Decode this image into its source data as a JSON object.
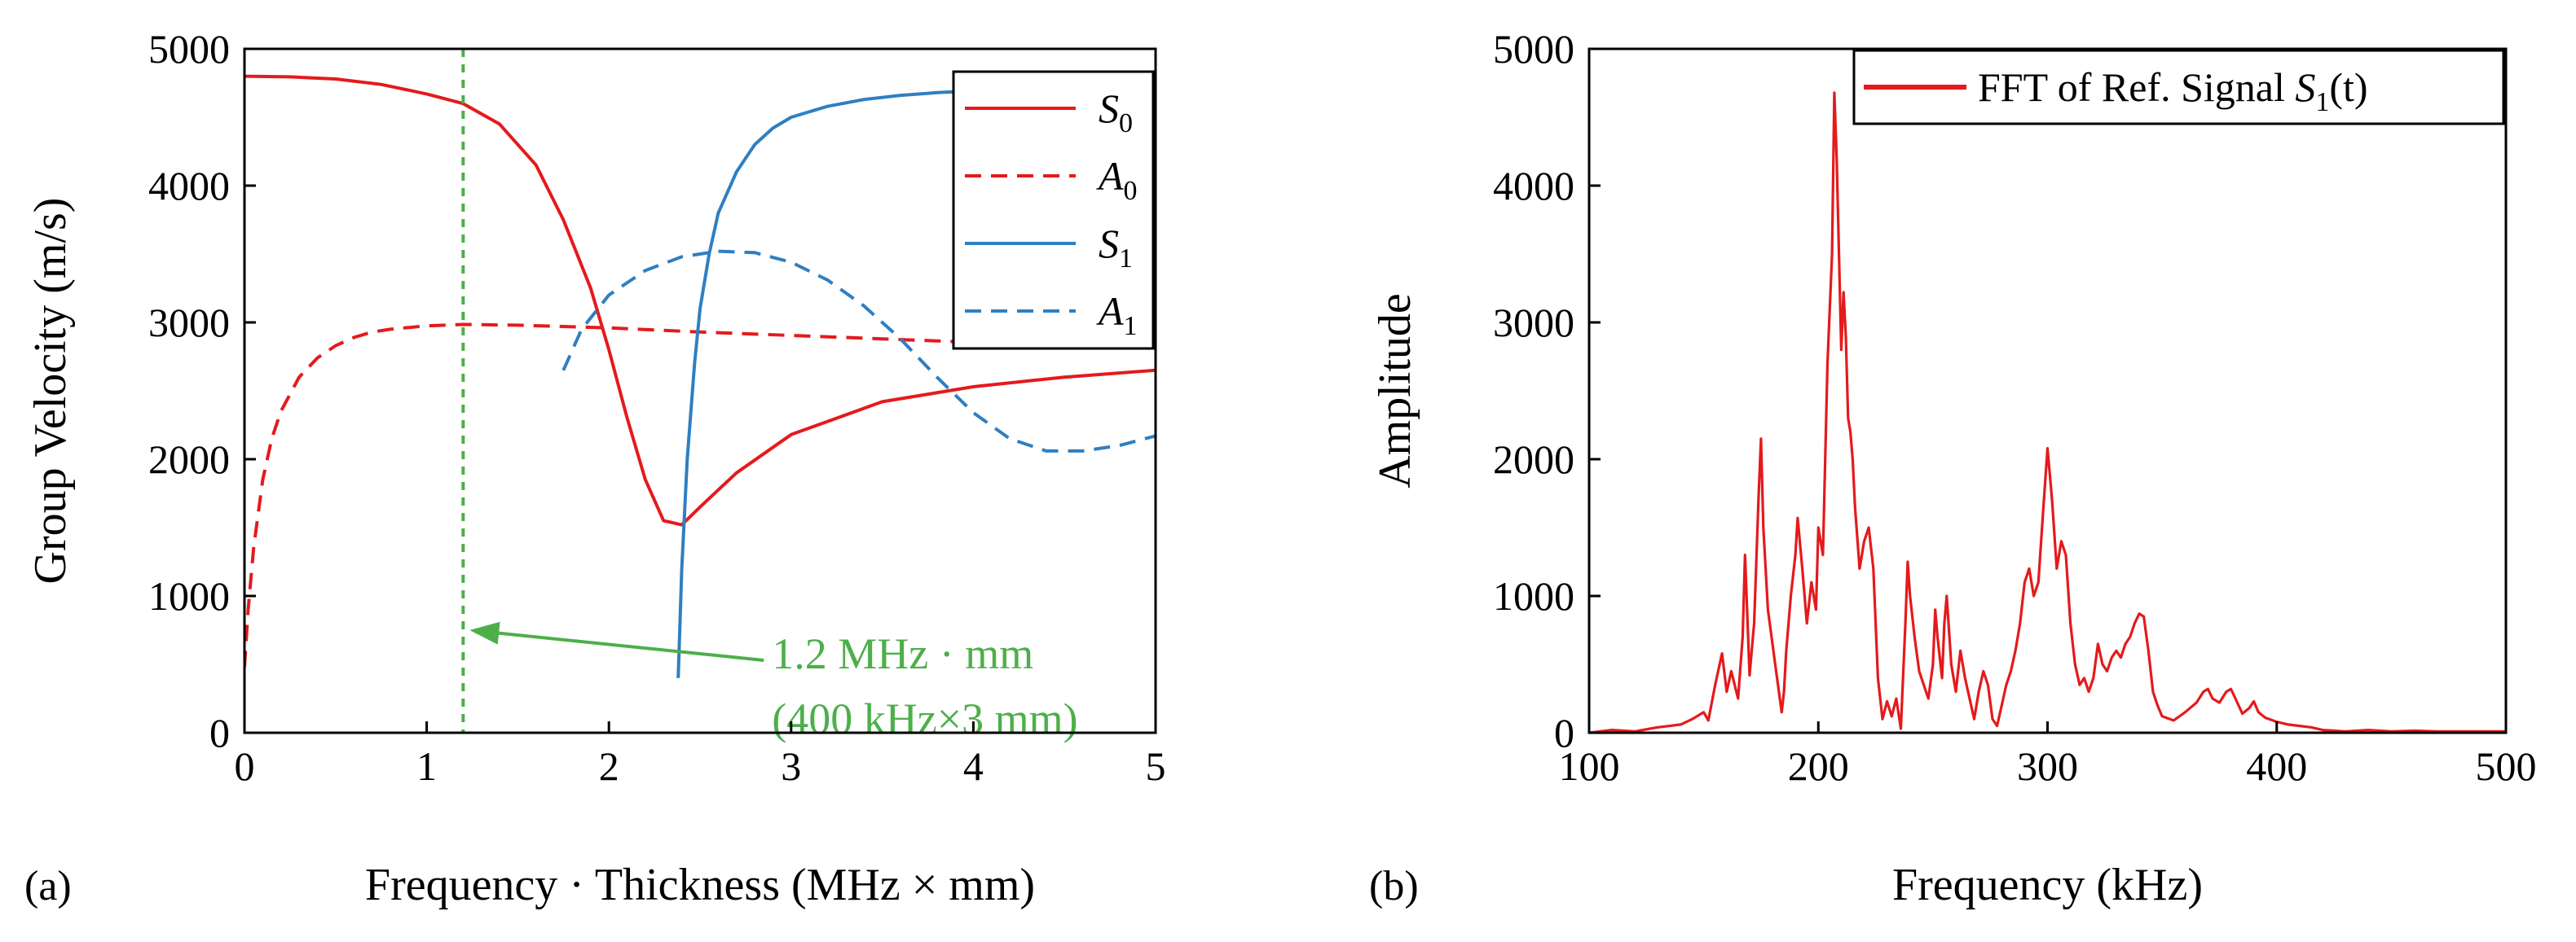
{
  "colors": {
    "red": "#e41a1c",
    "blue": "#2f7fc1",
    "green": "#4daf4a",
    "black": "#000000"
  },
  "chart_data": [
    {
      "panel": "(a)",
      "type": "line",
      "title": "",
      "xlabel": "Frequency · Thickness (MHz × mm)",
      "ylabel": "Group Velocity (m/s)",
      "xlim": [
        0,
        5
      ],
      "ylim": [
        0,
        5000
      ],
      "xticks": [
        0,
        1,
        2,
        3,
        4,
        5
      ],
      "yticks": [
        0,
        1000,
        2000,
        3000,
        4000,
        5000
      ],
      "xtick_labels": [
        "0",
        "1",
        "2",
        "3",
        "4",
        "5"
      ],
      "ytick_labels": [
        "0",
        "1000",
        "2000",
        "3000",
        "4000",
        "5000"
      ],
      "grid": false,
      "legend_position": "top-right",
      "series": [
        {
          "name": "S0",
          "legend_main": "S",
          "legend_sub": "0",
          "color": "red",
          "dash": "solid",
          "x": [
            0.0,
            0.25,
            0.5,
            0.75,
            1.0,
            1.2,
            1.4,
            1.6,
            1.75,
            1.9,
            2.0,
            2.1,
            2.2,
            2.3,
            2.4,
            2.5,
            2.7,
            3.0,
            3.5,
            4.0,
            4.5,
            5.0
          ],
          "y": [
            4800,
            4795,
            4780,
            4740,
            4670,
            4600,
            4450,
            4150,
            3750,
            3250,
            2800,
            2300,
            1850,
            1550,
            1520,
            1650,
            1900,
            2180,
            2420,
            2530,
            2600,
            2650
          ]
        },
        {
          "name": "A0",
          "legend_main": "A",
          "legend_sub": "0",
          "color": "red",
          "dash": "dashed",
          "x": [
            0.0,
            0.02,
            0.05,
            0.1,
            0.15,
            0.2,
            0.3,
            0.4,
            0.5,
            0.6,
            0.7,
            0.8,
            1.0,
            1.2,
            1.5,
            2.0,
            2.5,
            3.0,
            3.5,
            4.0,
            4.5,
            5.0
          ],
          "y": [
            480,
            900,
            1350,
            1850,
            2150,
            2350,
            2600,
            2740,
            2830,
            2890,
            2930,
            2950,
            2975,
            2985,
            2980,
            2960,
            2930,
            2905,
            2880,
            2855,
            2830,
            2810
          ]
        },
        {
          "name": "S1",
          "legend_main": "S",
          "legend_sub": "1",
          "color": "blue",
          "dash": "solid",
          "x": [
            2.38,
            2.4,
            2.43,
            2.47,
            2.5,
            2.55,
            2.6,
            2.7,
            2.8,
            2.9,
            3.0,
            3.2,
            3.4,
            3.6,
            3.8,
            3.95
          ],
          "y": [
            400,
            1200,
            2000,
            2700,
            3100,
            3500,
            3800,
            4100,
            4300,
            4420,
            4500,
            4580,
            4630,
            4660,
            4680,
            4690
          ]
        },
        {
          "name": "A1",
          "legend_main": "A",
          "legend_sub": "1",
          "color": "blue",
          "dash": "dashed",
          "x": [
            1.75,
            1.85,
            2.0,
            2.2,
            2.4,
            2.6,
            2.8,
            3.0,
            3.2,
            3.4,
            3.6,
            3.8,
            4.0,
            4.2,
            4.4,
            4.6,
            4.8,
            5.0
          ],
          "y": [
            2650,
            2950,
            3200,
            3380,
            3480,
            3520,
            3510,
            3440,
            3310,
            3120,
            2880,
            2600,
            2340,
            2150,
            2060,
            2060,
            2100,
            2170
          ]
        }
      ],
      "annotation": {
        "marker_x": 1.2,
        "line_1": "1.2 MHz · mm",
        "line_2": "(400 kHz×3 mm)",
        "arrow_tip": [
          1.2,
          750
        ],
        "arrow_tail": [
          2.85,
          530
        ]
      }
    },
    {
      "panel": "(b)",
      "type": "line",
      "title": "",
      "xlabel": "Frequency (kHz)",
      "ylabel": "Amplitude",
      "xlim": [
        100,
        500
      ],
      "ylim": [
        0,
        5000
      ],
      "xticks": [
        100,
        200,
        300,
        400,
        500
      ],
      "yticks": [
        0,
        1000,
        2000,
        3000,
        4000,
        5000
      ],
      "xtick_labels": [
        "100",
        "200",
        "300",
        "400",
        "500"
      ],
      "ytick_labels": [
        "0",
        "1000",
        "2000",
        "3000",
        "4000",
        "5000"
      ],
      "grid": false,
      "legend_position": "top-right",
      "series": [
        {
          "name": "FFT of Ref. Signal S1(t)",
          "legend_text": "FFT of Ref. Signal ",
          "legend_math_main": "S",
          "legend_math_sub": "1",
          "legend_math_tail": "(t)",
          "color": "red",
          "dash": "solid",
          "x": [
            100,
            110,
            120,
            130,
            140,
            145,
            150,
            152,
            155,
            158,
            160,
            162,
            165,
            167,
            168,
            170,
            172,
            174,
            175,
            176,
            178,
            180,
            182,
            184,
            185,
            186,
            188,
            190,
            191,
            193,
            195,
            197,
            199,
            200,
            202,
            204,
            206,
            207,
            208,
            209,
            210,
            211,
            212,
            213,
            214,
            215,
            216,
            218,
            220,
            222,
            224,
            226,
            228,
            230,
            232,
            234,
            236,
            238,
            239,
            240,
            242,
            244,
            246,
            248,
            250,
            251,
            252,
            254,
            255,
            256,
            257,
            258,
            260,
            262,
            264,
            266,
            268,
            270,
            272,
            274,
            276,
            278,
            280,
            282,
            284,
            286,
            288,
            290,
            292,
            294,
            296,
            298,
            300,
            302,
            304,
            306,
            308,
            310,
            312,
            314,
            316,
            318,
            320,
            322,
            324,
            326,
            328,
            330,
            332,
            334,
            336,
            338,
            340,
            342,
            344,
            346,
            348,
            350,
            355,
            360,
            365,
            368,
            370,
            372,
            375,
            378,
            380,
            382,
            385,
            388,
            390,
            392,
            395,
            400,
            405,
            410,
            415,
            420,
            430,
            440,
            450,
            460,
            470,
            480,
            490,
            500
          ],
          "y": [
            0,
            20,
            10,
            40,
            60,
            100,
            150,
            90,
            350,
            580,
            300,
            450,
            250,
            700,
            1300,
            420,
            800,
            1750,
            2150,
            1500,
            900,
            650,
            400,
            150,
            300,
            600,
            1000,
            1300,
            1570,
            1200,
            800,
            1100,
            900,
            1500,
            1300,
            2700,
            3500,
            4680,
            4200,
            3500,
            2800,
            3220,
            2900,
            2300,
            2200,
            2000,
            1650,
            1200,
            1400,
            1500,
            1200,
            400,
            100,
            230,
            120,
            250,
            30,
            800,
            1250,
            1000,
            700,
            450,
            350,
            250,
            500,
            900,
            700,
            400,
            800,
            1000,
            750,
            500,
            300,
            600,
            400,
            250,
            100,
            300,
            450,
            350,
            100,
            50,
            200,
            350,
            450,
            600,
            800,
            1100,
            1200,
            1000,
            1100,
            1600,
            2080,
            1700,
            1200,
            1400,
            1300,
            800,
            500,
            350,
            400,
            300,
            400,
            650,
            500,
            450,
            550,
            600,
            550,
            650,
            700,
            800,
            870,
            850,
            600,
            300,
            200,
            120,
            90,
            150,
            220,
            300,
            320,
            250,
            220,
            300,
            320,
            250,
            140,
            180,
            230,
            150,
            110,
            80,
            60,
            50,
            40,
            20,
            10,
            20,
            10,
            15,
            10,
            10,
            10,
            10
          ]
        }
      ]
    }
  ]
}
